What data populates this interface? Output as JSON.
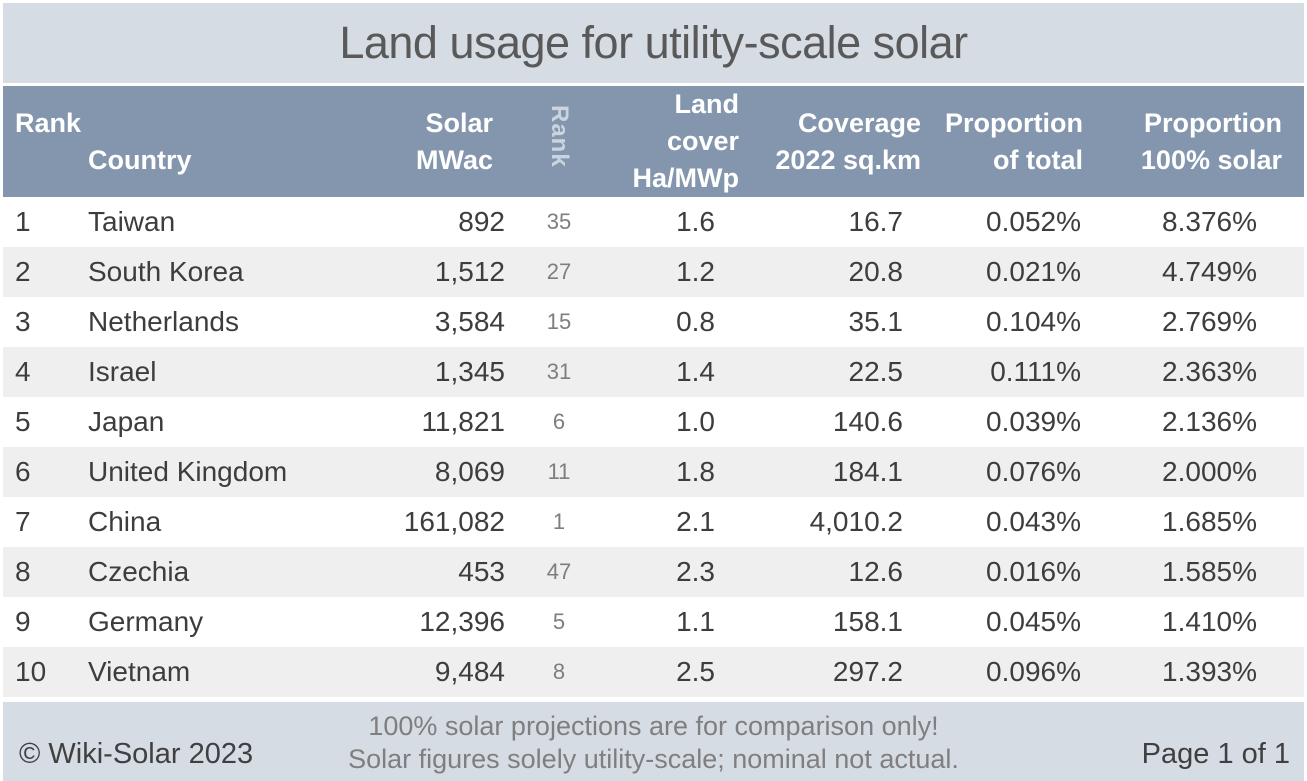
{
  "title": "Land usage for utility-scale solar",
  "colors": {
    "title_bar_bg": "#d6dce4",
    "header_bg": "#8496ae",
    "header_text": "#ffffff",
    "stripe_row_bg": "#efefef",
    "body_text": "#3d3d3d",
    "secondary_rank_text": "#7e7e7e",
    "footer_bg": "#d6dce4",
    "footer_note_text": "#7f7f7f"
  },
  "table": {
    "headers": {
      "rank": "Rank",
      "country": "Country",
      "solar_line1": "Solar",
      "solar_line2": "MWac",
      "rank2_vertical": "Rank",
      "land_line1": "Land cover",
      "land_line2": "Ha/MWp",
      "coverage_line1": "Coverage",
      "coverage_line2": "2022 sq.km",
      "prop_total_line1": "Proportion",
      "prop_total_line2": "of total",
      "prop_100_line1": "Proportion",
      "prop_100_line2": "100% solar"
    },
    "rows": [
      {
        "rank": "1",
        "country": "Taiwan",
        "solar_mwac": "892",
        "rank2": "35",
        "land_cover": "1.6",
        "coverage": "16.7",
        "prop_total": "0.052%",
        "prop_100": "8.376%"
      },
      {
        "rank": "2",
        "country": "South Korea",
        "solar_mwac": "1,512",
        "rank2": "27",
        "land_cover": "1.2",
        "coverage": "20.8",
        "prop_total": "0.021%",
        "prop_100": "4.749%"
      },
      {
        "rank": "3",
        "country": "Netherlands",
        "solar_mwac": "3,584",
        "rank2": "15",
        "land_cover": "0.8",
        "coverage": "35.1",
        "prop_total": "0.104%",
        "prop_100": "2.769%"
      },
      {
        "rank": "4",
        "country": "Israel",
        "solar_mwac": "1,345",
        "rank2": "31",
        "land_cover": "1.4",
        "coverage": "22.5",
        "prop_total": "0.111%",
        "prop_100": "2.363%"
      },
      {
        "rank": "5",
        "country": "Japan",
        "solar_mwac": "11,821",
        "rank2": "6",
        "land_cover": "1.0",
        "coverage": "140.6",
        "prop_total": "0.039%",
        "prop_100": "2.136%"
      },
      {
        "rank": "6",
        "country": "United Kingdom",
        "solar_mwac": "8,069",
        "rank2": "11",
        "land_cover": "1.8",
        "coverage": "184.1",
        "prop_total": "0.076%",
        "prop_100": "2.000%"
      },
      {
        "rank": "7",
        "country": "China",
        "solar_mwac": "161,082",
        "rank2": "1",
        "land_cover": "2.1",
        "coverage": "4,010.2",
        "prop_total": "0.043%",
        "prop_100": "1.685%"
      },
      {
        "rank": "8",
        "country": "Czechia",
        "solar_mwac": "453",
        "rank2": "47",
        "land_cover": "2.3",
        "coverage": "12.6",
        "prop_total": "0.016%",
        "prop_100": "1.585%"
      },
      {
        "rank": "9",
        "country": "Germany",
        "solar_mwac": "12,396",
        "rank2": "5",
        "land_cover": "1.1",
        "coverage": "158.1",
        "prop_total": "0.045%",
        "prop_100": "1.410%"
      },
      {
        "rank": "10",
        "country": "Vietnam",
        "solar_mwac": "9,484",
        "rank2": "8",
        "land_cover": "2.5",
        "coverage": "297.2",
        "prop_total": "0.096%",
        "prop_100": "1.393%"
      }
    ]
  },
  "footer": {
    "copyright": "© Wiki-Solar 2023",
    "note_line1": "100% solar projections are for comparison only!",
    "note_line2": "Solar figures solely utility-scale; nominal not actual.",
    "page": "Page 1 of 1"
  }
}
